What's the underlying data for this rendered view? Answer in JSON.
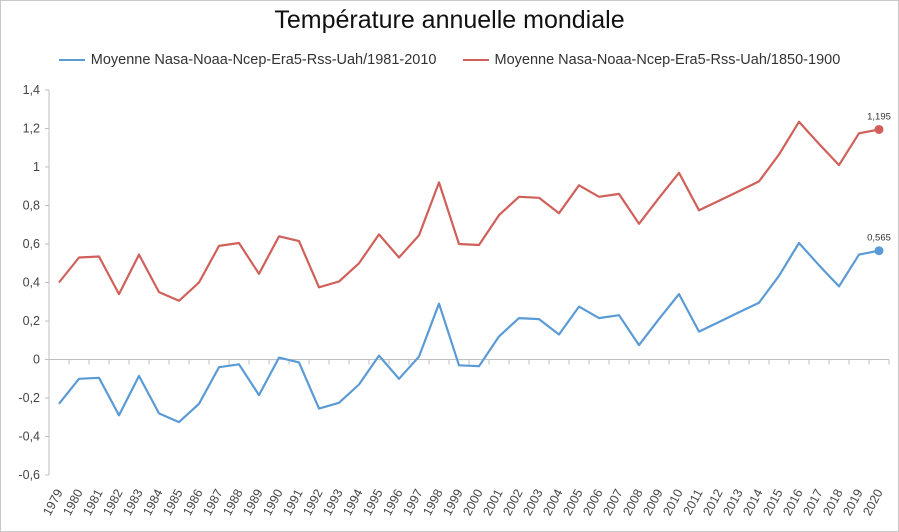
{
  "chart_data": {
    "type": "line",
    "title": "Température annuelle mondiale",
    "xlabel": "",
    "ylabel": "",
    "ylim": [
      -0.6,
      1.4
    ],
    "yticks": [
      "-0,6",
      "-0,4",
      "-0,2",
      "0",
      "0,2",
      "0,4",
      "0,6",
      "0,8",
      "1",
      "1,2",
      "1,4"
    ],
    "ytick_values": [
      -0.6,
      -0.4,
      -0.2,
      0,
      0.2,
      0.4,
      0.6,
      0.8,
      1,
      1.2,
      1.4
    ],
    "grid": false,
    "legend_position": "top",
    "categories": [
      "1979",
      "1980",
      "1981",
      "1982",
      "1983",
      "1984",
      "1985",
      "1986",
      "1987",
      "1988",
      "1989",
      "1990",
      "1991",
      "1992",
      "1993",
      "1994",
      "1995",
      "1996",
      "1997",
      "1998",
      "1999",
      "2000",
      "2001",
      "2002",
      "2003",
      "2004",
      "2005",
      "2006",
      "2007",
      "2008",
      "2009",
      "2010",
      "2011",
      "2012",
      "2013",
      "2014",
      "2015",
      "2016",
      "2017",
      "2018",
      "2019",
      "2020"
    ],
    "series": [
      {
        "name": "Moyenne Nasa-Noaa-Ncep-Era5-Rss-Uah/1981-2010",
        "color": "#5b9bd5",
        "values": [
          -0.23,
          -0.1,
          -0.095,
          -0.29,
          -0.085,
          -0.28,
          -0.325,
          -0.23,
          -0.04,
          -0.025,
          -0.185,
          0.01,
          -0.015,
          -0.255,
          -0.225,
          -0.13,
          0.02,
          -0.1,
          0.015,
          0.29,
          -0.03,
          -0.035,
          0.12,
          0.215,
          0.21,
          0.13,
          0.275,
          0.215,
          0.23,
          0.075,
          0.21,
          0.34,
          0.145,
          0.195,
          0.245,
          0.295,
          0.435,
          0.605,
          0.49,
          0.38,
          0.545,
          0.565
        ],
        "end_label": "0,565"
      },
      {
        "name": "Moyenne Nasa-Noaa-Ncep-Era5-Rss-Uah/1850-1900",
        "color": "#d0605a",
        "values": [
          0.4,
          0.53,
          0.535,
          0.34,
          0.545,
          0.35,
          0.305,
          0.4,
          0.59,
          0.605,
          0.445,
          0.64,
          0.615,
          0.375,
          0.405,
          0.5,
          0.65,
          0.53,
          0.645,
          0.92,
          0.6,
          0.595,
          0.75,
          0.845,
          0.84,
          0.76,
          0.905,
          0.845,
          0.86,
          0.705,
          0.84,
          0.97,
          0.775,
          0.825,
          0.875,
          0.925,
          1.065,
          1.235,
          1.12,
          1.01,
          1.175,
          1.195
        ],
        "end_label": "1,195"
      }
    ]
  }
}
